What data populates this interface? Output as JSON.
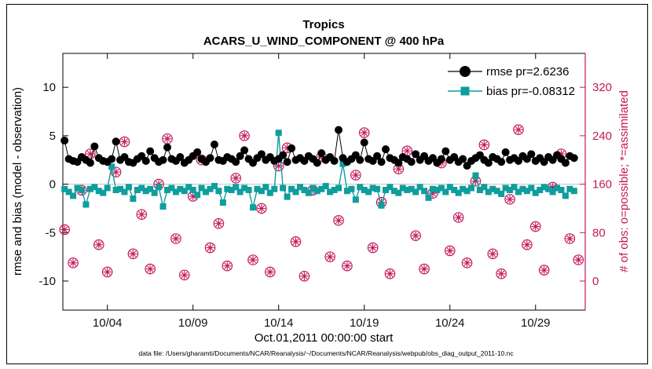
{
  "figure": {
    "footer": "data file: /Users/gharamti/Documents/NCAR/Reanalysis/~/Documents/NCAR/Reanalysis/webpub/obs_diag_output_2011-10.nc"
  },
  "chart_data": {
    "type": "line",
    "title": "Tropics",
    "subtitle": "ACARS_U_WIND_COMPONENT @ 400 hPa",
    "xlabel": "Oct.01,2011 00:00:00 start",
    "ylabel_left": "rmse and bias (model - observation)",
    "ylabel_right": "# of obs: o=possible; *=assimilated",
    "xlim": [
      1.4,
      31.9
    ],
    "ylim_left": [
      -13,
      13.5
    ],
    "ylim_right": [
      -48,
      376
    ],
    "xticks": [
      4,
      9,
      14,
      19,
      24,
      29
    ],
    "xtick_labels": [
      "10/04",
      "10/09",
      "10/14",
      "10/19",
      "10/24",
      "10/29"
    ],
    "yticks_left": [
      -10,
      -5,
      0,
      5,
      10
    ],
    "yticks_right": [
      0,
      80,
      160,
      240,
      320
    ],
    "grid": false,
    "legend_position": "top-right-inside",
    "colors": {
      "rmse": "#000000",
      "bias": "#0f9d9d",
      "obs": "#c2185b",
      "zero_line": "#c2c2c2",
      "axis": "#000000"
    },
    "legend": [
      {
        "label": "rmse pr=2.6236",
        "series": "rmse"
      },
      {
        "label": "bias pr=-0.08312",
        "series": "bias"
      }
    ],
    "series": [
      {
        "name": "rmse",
        "axis": "left",
        "marker": "filled-circle",
        "x_start": 1.5,
        "x_step": 0.25,
        "values": [
          4.5,
          2.6,
          2.4,
          2.3,
          2.8,
          2.5,
          2.2,
          3.9,
          2.7,
          2.4,
          2.3,
          2.6,
          4.4,
          2.5,
          2.8,
          2.3,
          2.2,
          2.6,
          2.9,
          2.4,
          3.4,
          2.7,
          2.3,
          2.5,
          3.8,
          2.6,
          2.4,
          2.8,
          2.2,
          2.5,
          2.9,
          3.3,
          2.6,
          2.3,
          2.7,
          4.1,
          2.5,
          2.4,
          2.8,
          2.6,
          2.3,
          2.9,
          3.5,
          2.6,
          2.2,
          2.7,
          3.1,
          2.5,
          2.8,
          2.4,
          2.6,
          3.0,
          2.3,
          3.7,
          2.5,
          2.7,
          2.4,
          2.9,
          2.6,
          2.2,
          3.2,
          2.5,
          2.8,
          2.4,
          5.6,
          2.7,
          2.3,
          2.6,
          3.0,
          2.5,
          4.3,
          2.6,
          2.4,
          2.9,
          2.3,
          3.6,
          2.7,
          2.5,
          2.2,
          2.8,
          2.6,
          2.3,
          3.1,
          2.5,
          2.9,
          2.4,
          2.7,
          2.2,
          2.6,
          3.4,
          2.5,
          2.8,
          2.3,
          2.6,
          1.9,
          2.4,
          2.7,
          3.0,
          2.5,
          2.2,
          2.8,
          2.6,
          2.3,
          3.3,
          2.5,
          2.7,
          2.4,
          2.9,
          2.6,
          3.1,
          2.4,
          2.7,
          2.3,
          2.8,
          2.5,
          3.0,
          2.6,
          2.2,
          2.9,
          2.7
        ]
      },
      {
        "name": "bias",
        "axis": "left",
        "marker": "filled-square",
        "x_start": 1.5,
        "x_step": 0.25,
        "values": [
          -0.5,
          -0.8,
          -1.2,
          -0.4,
          -0.6,
          -2.1,
          -0.5,
          -0.3,
          -0.7,
          -0.9,
          -0.4,
          1.8,
          -0.6,
          -0.5,
          -0.8,
          -0.3,
          -1.5,
          -0.6,
          -0.4,
          -0.7,
          -0.5,
          -0.9,
          -0.3,
          -2.3,
          -0.6,
          -0.4,
          -0.8,
          -0.5,
          -0.7,
          -0.3,
          -0.6,
          -1.1,
          -0.4,
          -0.8,
          -0.5,
          -0.2,
          -0.7,
          -1.9,
          -0.5,
          -0.6,
          -0.3,
          -0.8,
          -0.4,
          -0.6,
          -2.4,
          -0.5,
          -0.7,
          -0.3,
          -0.9,
          -0.5,
          5.3,
          -0.4,
          -1.3,
          -0.5,
          -0.8,
          -0.3,
          -0.6,
          -0.9,
          -0.4,
          -0.7,
          -0.5,
          -0.2,
          -0.8,
          -0.6,
          -0.4,
          2.1,
          -0.7,
          -0.5,
          -1.6,
          -0.3,
          -0.6,
          -0.8,
          -0.4,
          -0.5,
          -2.2,
          -0.6,
          -0.3,
          -0.7,
          -0.9,
          -0.4,
          -0.6,
          -0.5,
          -0.8,
          -0.3,
          -0.7,
          -1.4,
          -0.5,
          -0.6,
          -0.4,
          -0.8,
          -0.3,
          -0.6,
          -0.9,
          -0.5,
          -0.7,
          -0.4,
          0.9,
          -0.6,
          -0.3,
          -0.8,
          -0.5,
          -0.7,
          -1.0,
          -0.4,
          -0.6,
          -0.3,
          -0.8,
          -0.5,
          -0.7,
          -0.4,
          -0.9,
          -0.6,
          -0.3,
          -0.5,
          -0.8,
          -0.4,
          -0.6,
          -1.2,
          -0.5,
          -0.7
        ]
      },
      {
        "name": "obs_count",
        "axis": "right",
        "marker": "circle-asterisk",
        "x_start": 1.5,
        "x_step": 0.5,
        "values": [
          85,
          30,
          150,
          210,
          60,
          15,
          180,
          230,
          45,
          110,
          20,
          160,
          235,
          70,
          10,
          140,
          200,
          55,
          95,
          25,
          170,
          240,
          35,
          120,
          15,
          190,
          220,
          65,
          8,
          150,
          205,
          40,
          100,
          25,
          175,
          245,
          55,
          130,
          12,
          185,
          215,
          75,
          20,
          145,
          195,
          50,
          105,
          30,
          165,
          225,
          45,
          12,
          135,
          250,
          60,
          90,
          18,
          155,
          210,
          70,
          35
        ]
      }
    ]
  }
}
